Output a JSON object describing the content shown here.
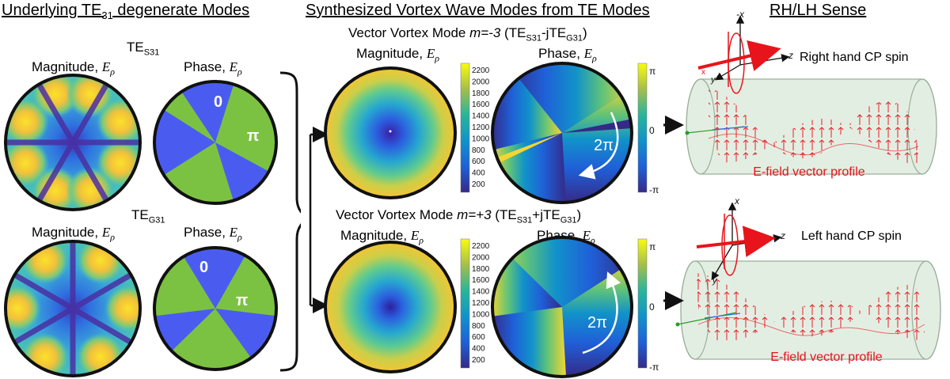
{
  "sections": {
    "left_title": "Underlying TE",
    "left_title_sub": "31",
    "left_title_rest": " degenerate Modes",
    "middle_title": "Synthesized Vortex Wave Modes from TE Modes",
    "right_title": "RH/LH Sense"
  },
  "left": {
    "top_mode": {
      "base": "TE",
      "sub": "S31"
    },
    "bottom_mode": {
      "base": "TE",
      "sub": "G31"
    },
    "magnitude_label": "Magnitude, ",
    "phase_label": "Phase, ",
    "field_symbol": "E",
    "field_sub": "ρ",
    "phase_zero": "0",
    "phase_pi": "π"
  },
  "middle": {
    "vortex_top_title": {
      "pre": "Vector Vortex Mode ",
      "m": "m=-3",
      "combo": " (TE",
      "s": "S31",
      "op": "-jTE",
      "g": "G31",
      "end": ")"
    },
    "vortex_bottom_title": {
      "pre": "Vector Vortex Mode ",
      "m": "m=+3",
      "combo": " (TE",
      "s": "S31",
      "op": "+jTE",
      "g": "G31",
      "end": ")"
    },
    "magnitude_label": "Magnitude, ",
    "phase_label": "Phase, ",
    "magnitude_ticks": [
      "2200",
      "2000",
      "1800",
      "1600",
      "1400",
      "1200",
      "1000",
      "800",
      "600",
      "400",
      "200"
    ],
    "phase_ticks": [
      "π",
      "0",
      "-π"
    ],
    "two_pi": "2π"
  },
  "right": {
    "top_caption": "Right hand CP spin",
    "bottom_caption": "Left hand CP spin",
    "profile_label": "E-field vector profile",
    "axis_x": "x",
    "axis_y": "y",
    "axis_z": "z",
    "axis_x_neg": "-x"
  },
  "colors": {
    "phase_blue": "#4a5cf0",
    "phase_green": "#7cc242",
    "accent_red": "#e8141b",
    "cylinder_fill": "#e3eee3"
  }
}
